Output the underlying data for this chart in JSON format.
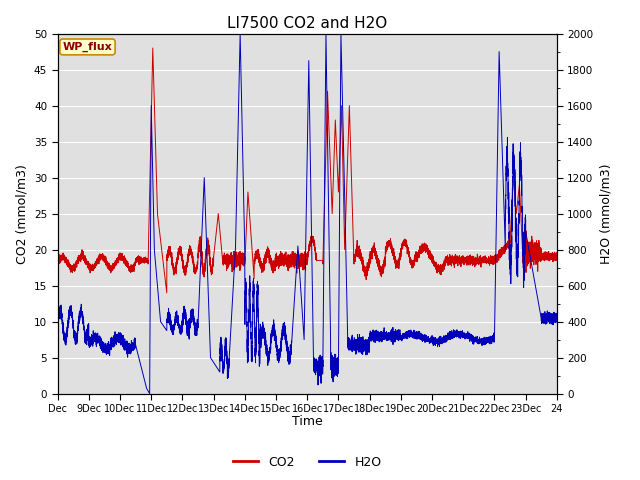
{
  "title": "LI7500 CO2 and H2O",
  "xlabel": "Time",
  "ylabel_left": "CO2 (mmol/m3)",
  "ylabel_right": "H2O (mmol/m3)",
  "xlim": [
    8,
    24
  ],
  "ylim_left": [
    0,
    50
  ],
  "ylim_right": [
    0,
    2000
  ],
  "yticks_left": [
    0,
    5,
    10,
    15,
    20,
    25,
    30,
    35,
    40,
    45,
    50
  ],
  "yticks_right": [
    0,
    200,
    400,
    600,
    800,
    1000,
    1200,
    1400,
    1600,
    1800,
    2000
  ],
  "xtick_positions": [
    8,
    9,
    10,
    11,
    12,
    13,
    14,
    15,
    16,
    17,
    18,
    19,
    20,
    21,
    22,
    23,
    24
  ],
  "xticklabels": [
    "Dec",
    "9Dec",
    "10Dec",
    "11Dec",
    "12Dec",
    "13Dec",
    "14Dec",
    "15Dec",
    "16Dec",
    "17Dec",
    "18Dec",
    "19Dec",
    "20Dec",
    "21Dec",
    "22Dec",
    "23Dec",
    "24"
  ],
  "background_color": "#e0e0e0",
  "grid_color": "#ffffff",
  "co2_color": "#cc0000",
  "h2o_color": "#0000bb",
  "annotation_text": "WP_flux",
  "legend_co2": "CO2",
  "legend_h2o": "H2O",
  "title_fontsize": 11,
  "axis_label_fontsize": 9,
  "tick_fontsize": 7.5,
  "legend_fontsize": 9,
  "linewidth": 0.7
}
